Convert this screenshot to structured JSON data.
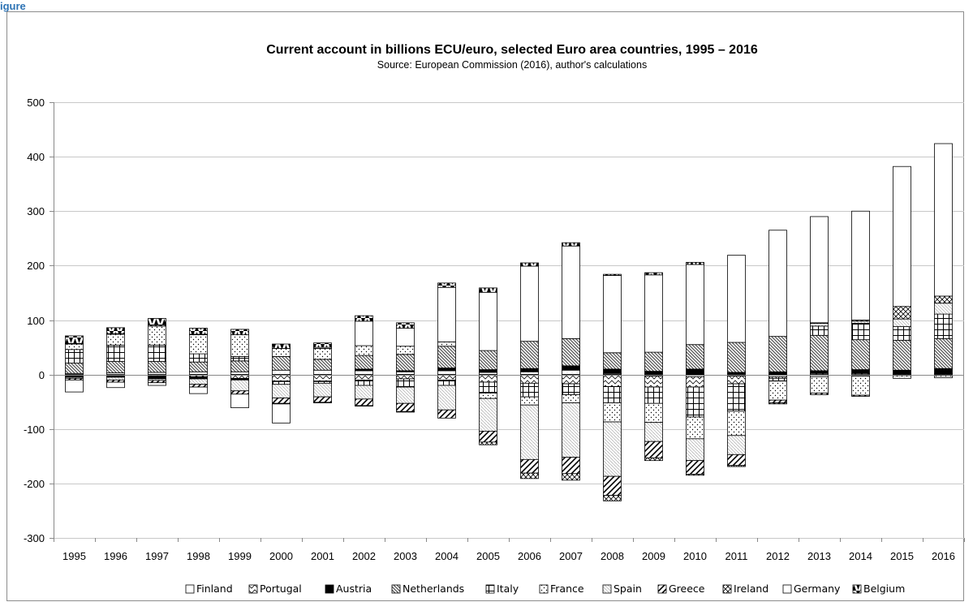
{
  "figure_label": "igure",
  "chart_data": {
    "type": "bar",
    "stacked": true,
    "title": "Current account in billions ECU/euro, selected Euro area countries, 1995 – 2016",
    "subtitle": "Source: European Commission (2016), author's calculations",
    "xlabel": "",
    "ylabel": "",
    "ylim": [
      -300,
      500
    ],
    "yticks": [
      500,
      400,
      300,
      200,
      100,
      0,
      -100,
      -200,
      -300
    ],
    "grid": true,
    "legend_position": "bottom",
    "categories": [
      "1995",
      "1996",
      "1997",
      "1998",
      "1999",
      "2000",
      "2001",
      "2002",
      "2003",
      "2004",
      "2005",
      "2006",
      "2007",
      "2008",
      "2009",
      "2010",
      "2011",
      "2012",
      "2013",
      "2014",
      "2015",
      "2016"
    ],
    "series": [
      {
        "name": "Finland",
        "pattern": "empty",
        "values": [
          2,
          3,
          4,
          5,
          5,
          8,
          8,
          7,
          5,
          7,
          4,
          5,
          8,
          2,
          -3,
          -4,
          -3,
          -4,
          -4,
          -3,
          -2,
          -2
        ]
      },
      {
        "name": "Portugal",
        "pattern": "waves",
        "values": [
          -1,
          -2,
          -3,
          -4,
          -7,
          -12,
          -12,
          -10,
          -8,
          -10,
          -14,
          -16,
          -17,
          -22,
          -20,
          -19,
          -14,
          -3,
          2,
          2,
          1,
          1
        ]
      },
      {
        "name": "Austria",
        "pattern": "solid",
        "values": [
          -4,
          -3,
          -5,
          -4,
          -3,
          -1,
          -1,
          3,
          2,
          5,
          5,
          6,
          8,
          8,
          6,
          10,
          4,
          5,
          5,
          7,
          7,
          10
        ]
      },
      {
        "name": "Netherlands",
        "pattern": "diagonal",
        "values": [
          19,
          21,
          20,
          18,
          20,
          25,
          20,
          25,
          30,
          40,
          35,
          50,
          50,
          30,
          35,
          45,
          55,
          65,
          65,
          55,
          55,
          55
        ]
      },
      {
        "name": "Italy",
        "pattern": "grid",
        "values": [
          25,
          30,
          30,
          15,
          8,
          -5,
          -3,
          -10,
          -15,
          -10,
          -20,
          -25,
          -20,
          -30,
          -30,
          -55,
          -50,
          -5,
          17,
          30,
          25,
          45
        ]
      },
      {
        "name": "France",
        "pattern": "dots",
        "values": [
          10,
          20,
          35,
          35,
          40,
          15,
          20,
          18,
          15,
          8,
          -10,
          -15,
          -15,
          -35,
          -35,
          -40,
          -45,
          -35,
          -30,
          -35,
          -5,
          -4
        ]
      },
      {
        "name": "Spain",
        "pattern": "hlines",
        "values": [
          -2,
          -5,
          -3,
          -10,
          -20,
          -25,
          -25,
          -25,
          -30,
          -45,
          -60,
          -100,
          -100,
          -100,
          -35,
          -40,
          -35,
          0,
          5,
          4,
          14,
          20
        ]
      },
      {
        "name": "Greece",
        "pattern": "hatch",
        "values": [
          -3,
          -4,
          -4,
          -5,
          -6,
          -10,
          -10,
          -12,
          -15,
          -15,
          -20,
          -25,
          -30,
          -35,
          -30,
          -25,
          -20,
          -5,
          -3,
          -2,
          0,
          0
        ]
      },
      {
        "name": "Ireland",
        "pattern": "xhatch",
        "values": [
          1,
          1,
          2,
          1,
          0,
          -1,
          -1,
          -1,
          -1,
          0,
          -5,
          -10,
          -12,
          -10,
          -5,
          -2,
          -2,
          -2,
          1,
          2,
          23,
          13
        ]
      },
      {
        "name": "Germany",
        "pattern": "white",
        "values": [
          -22,
          -10,
          -5,
          -12,
          -25,
          -35,
          2,
          45,
          33,
          100,
          107,
          138,
          170,
          142,
          142,
          147,
          160,
          195,
          195,
          200,
          257,
          280
        ]
      },
      {
        "name": "Belgium",
        "pattern": "belgium",
        "values": [
          14,
          11,
          12,
          11,
          10,
          8,
          8,
          10,
          10,
          8,
          8,
          6,
          6,
          2,
          4,
          4,
          0,
          0,
          0,
          0,
          0,
          0
        ]
      }
    ]
  }
}
